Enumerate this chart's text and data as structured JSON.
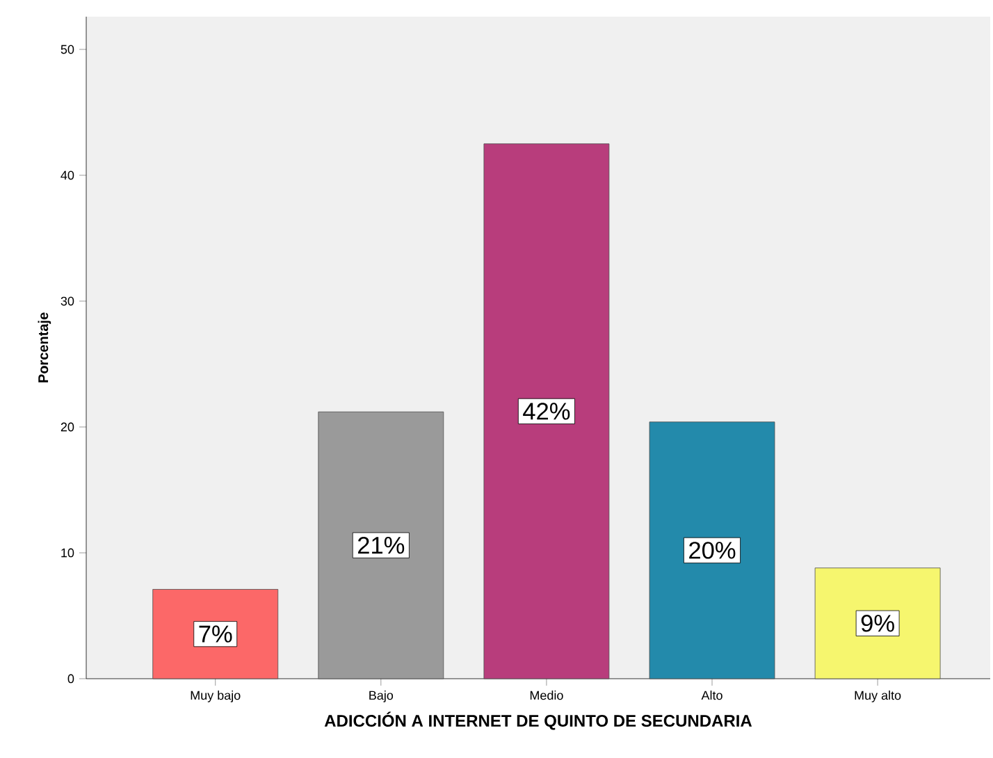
{
  "chart_data": {
    "type": "bar",
    "xlabel": "ADICCIÓN A INTERNET DE QUINTO DE SECUNDARIA",
    "ylabel": "Porcentaje",
    "categories": [
      "Muy bajo",
      "Bajo",
      "Medio",
      "Alto",
      "Muy alto"
    ],
    "values": [
      7.1,
      21.2,
      42.5,
      20.4,
      8.8
    ],
    "value_labels": [
      "7%",
      "21%",
      "42%",
      "20%",
      "9%"
    ],
    "colors": [
      "#fc6868",
      "#9a9a9a",
      "#b83d7c",
      "#238aab",
      "#f6f66e"
    ],
    "ylim": [
      0,
      52.6
    ],
    "yticks": [
      0,
      10,
      20,
      30,
      40,
      50
    ],
    "grid": false
  }
}
